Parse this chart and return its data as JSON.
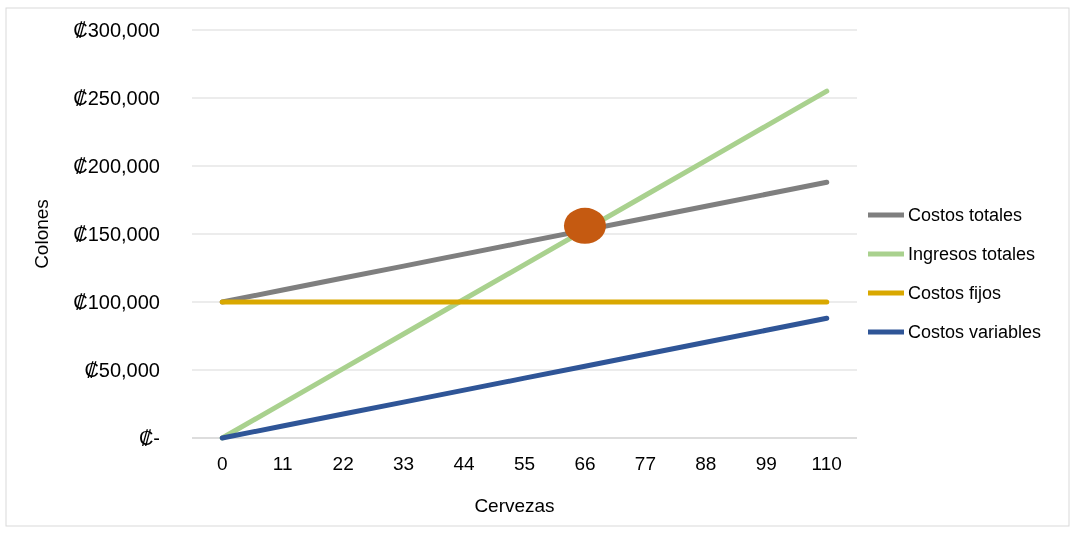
{
  "chart_data": {
    "type": "line",
    "xlabel": "Cervezas",
    "ylabel": "Colones",
    "categories": [
      "0",
      "11",
      "22",
      "33",
      "44",
      "55",
      "66",
      "77",
      "88",
      "99",
      "110"
    ],
    "series": [
      {
        "name": "Costos totales",
        "color": "#7f7f7f",
        "values": [
          100000,
          108800,
          117600,
          126400,
          135200,
          144000,
          null,
          161600,
          170400,
          179200,
          188000
        ]
      },
      {
        "name": "Ingresos totales",
        "color": "#a9d18e",
        "values": [
          0,
          25500,
          51000,
          76500,
          102000,
          127500,
          null,
          178500,
          204000,
          229500,
          255000
        ]
      },
      {
        "name": "Costos fijos",
        "color": "#d9a800",
        "values": [
          100000,
          100000,
          100000,
          100000,
          100000,
          100000,
          100000,
          100000,
          100000,
          100000,
          100000
        ]
      },
      {
        "name": "Costos variables",
        "color": "#2f5597",
        "values": [
          0,
          8800,
          17600,
          26400,
          35200,
          44000,
          52800,
          61600,
          70400,
          79200,
          88000
        ]
      },
      {
        "type": "scatter",
        "marker": "circle",
        "color": "#c55a11",
        "x": [
          "66"
        ],
        "values": [
          156000
        ]
      }
    ],
    "ylim": [
      0,
      300000
    ],
    "yticks": [
      {
        "value": 0,
        "label": "₡-"
      },
      {
        "value": 50000,
        "label": "₡50,000"
      },
      {
        "value": 100000,
        "label": "₡100,000"
      },
      {
        "value": 150000,
        "label": "₡150,000"
      },
      {
        "value": 200000,
        "label": "₡200,000"
      },
      {
        "value": 250000,
        "label": "₡250,000"
      },
      {
        "value": 300000,
        "label": "₡300,000"
      }
    ],
    "grid": "y",
    "legend": "right",
    "line_style": "solid"
  }
}
